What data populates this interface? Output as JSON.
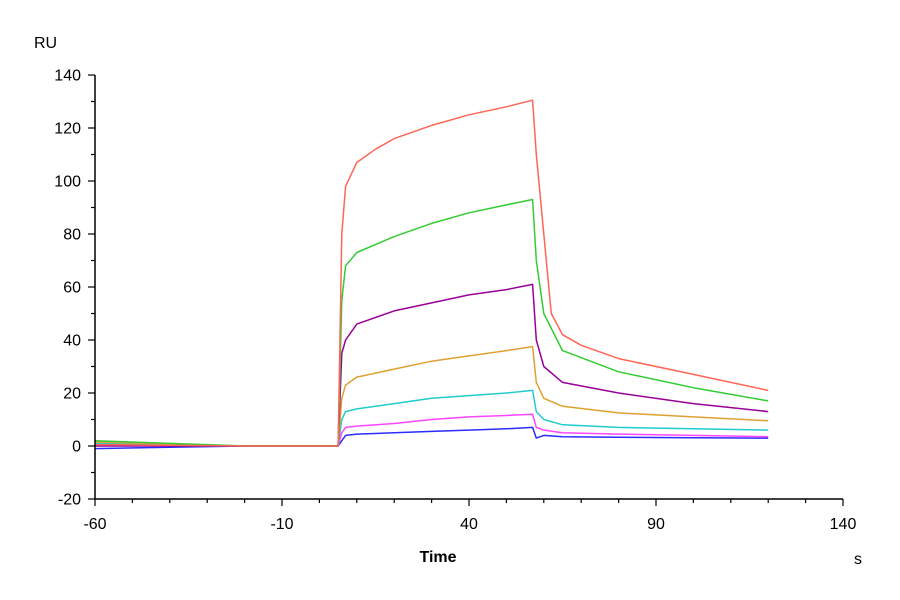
{
  "chart_data": {
    "type": "line",
    "xlabel": "Time",
    "x_unit": "s",
    "ylabel": "RU",
    "xlim": [
      -60,
      140
    ],
    "ylim": [
      -20,
      140
    ],
    "x_ticks": [
      -60,
      -10,
      40,
      90,
      140
    ],
    "y_ticks": [
      -20,
      0,
      20,
      40,
      60,
      80,
      100,
      120,
      140
    ],
    "grid": false,
    "series": [
      {
        "color": "#2b2bff",
        "x": [
          -60,
          -40,
          -20,
          -5,
          5,
          6,
          7,
          10,
          20,
          30,
          40,
          50,
          57,
          58,
          60,
          65,
          80,
          100,
          120
        ],
        "y": [
          -1,
          -0.5,
          0,
          0,
          0,
          2,
          4,
          4.5,
          5,
          5.5,
          6,
          6.5,
          7,
          3,
          4,
          3.5,
          3.3,
          3.1,
          3
        ]
      },
      {
        "color": "#ff44ff",
        "x": [
          -60,
          -40,
          -20,
          -5,
          5,
          6,
          7,
          10,
          20,
          30,
          40,
          50,
          57,
          58,
          60,
          65,
          80,
          100,
          120
        ],
        "y": [
          0.5,
          0.3,
          0,
          0,
          0,
          5,
          7,
          7.5,
          8.5,
          10,
          11,
          11.5,
          12,
          7,
          6,
          5,
          4.5,
          4,
          3.5
        ]
      },
      {
        "color": "#22cccc",
        "x": [
          -60,
          -40,
          -20,
          -5,
          5,
          6,
          7,
          10,
          20,
          30,
          40,
          50,
          57,
          58,
          60,
          65,
          80,
          100,
          120
        ],
        "y": [
          1,
          0.5,
          0,
          0,
          0,
          10,
          13,
          14,
          16,
          18,
          19,
          20,
          21,
          13,
          10,
          8,
          7,
          6.5,
          6
        ]
      },
      {
        "color": "#e0a030",
        "x": [
          -60,
          -40,
          -20,
          -5,
          5,
          6,
          7,
          10,
          20,
          30,
          40,
          50,
          57,
          58,
          60,
          65,
          80,
          100,
          120
        ],
        "y": [
          1.5,
          0.8,
          0,
          0,
          0,
          18,
          23,
          26,
          29,
          32,
          34,
          36,
          37.5,
          24,
          18,
          15,
          12.5,
          11,
          9.5
        ]
      },
      {
        "color": "#990099",
        "x": [
          -60,
          -40,
          -20,
          -5,
          5,
          6,
          7,
          10,
          20,
          30,
          40,
          50,
          57,
          58,
          60,
          65,
          80,
          100,
          120
        ],
        "y": [
          0,
          0,
          0,
          0,
          0,
          35,
          40,
          46,
          51,
          54,
          57,
          59,
          61,
          40,
          30,
          24,
          20,
          16,
          13
        ]
      },
      {
        "color": "#33cc33",
        "x": [
          -60,
          -40,
          -20,
          -5,
          5,
          6,
          7,
          10,
          20,
          30,
          40,
          50,
          57,
          58,
          60,
          65,
          80,
          100,
          120
        ],
        "y": [
          2,
          1,
          0,
          0,
          0,
          55,
          68,
          73,
          79,
          84,
          88,
          91,
          93,
          70,
          50,
          36,
          28,
          22,
          17
        ]
      },
      {
        "color": "#ff6655",
        "x": [
          -60,
          -40,
          -20,
          -5,
          5,
          6,
          7,
          10,
          15,
          20,
          30,
          40,
          50,
          57,
          58,
          60,
          62,
          65,
          70,
          80,
          100,
          120
        ],
        "y": [
          0.5,
          0.3,
          0,
          0,
          0,
          80,
          98,
          107,
          112,
          116,
          121,
          125,
          128,
          130.5,
          110,
          80,
          50,
          42,
          38,
          33,
          27,
          21
        ]
      }
    ]
  }
}
